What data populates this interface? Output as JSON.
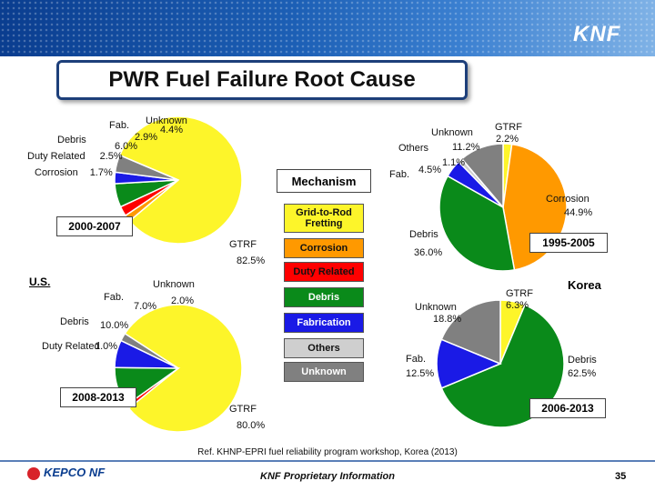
{
  "title": "PWR Fuel Failure Root Cause",
  "brand_logo_text": "KNF",
  "mechanism_label": "Mechanism",
  "countries": {
    "us": "U.S.",
    "korea": "Korea"
  },
  "legend": [
    {
      "label": "Grid-to-Rod Fretting",
      "color": "#fdf52a"
    },
    {
      "label": "Corrosion",
      "color": "#ff9900"
    },
    {
      "label": "Duty Related",
      "color": "#ff0000"
    },
    {
      "label": "Debris",
      "color": "#0a8a1a"
    },
    {
      "label": "Fabrication",
      "color": "#1a1ae6"
    },
    {
      "label": "Others",
      "color": "#cfcfcf"
    },
    {
      "label": "Unknown",
      "color": "#808080"
    }
  ],
  "chart_data": [
    {
      "type": "pie",
      "title": "2000-2007",
      "region": "U.S.",
      "slices": [
        {
          "label": "GTRF",
          "value": 82.5,
          "value_text": "82.5%"
        },
        {
          "label": "Corrosion",
          "value": 1.7,
          "value_text": "1.7%"
        },
        {
          "label": "Duty Related",
          "value": 2.5,
          "value_text": "2.5%"
        },
        {
          "label": "Debris",
          "value": 6.0,
          "value_text": "6.0%"
        },
        {
          "label": "Fab.",
          "value": 2.9,
          "value_text": "2.9%"
        },
        {
          "label": "Unknown",
          "value": 4.4,
          "value_text": "4.4%"
        }
      ]
    },
    {
      "type": "pie",
      "title": "2008-2013",
      "region": "U.S.",
      "slices": [
        {
          "label": "GTRF",
          "value": 80.0,
          "value_text": "80.0%"
        },
        {
          "label": "Duty Related",
          "value": 1.0,
          "value_text": "1.0%"
        },
        {
          "label": "Debris",
          "value": 10.0,
          "value_text": "10.0%"
        },
        {
          "label": "Fab.",
          "value": 7.0,
          "value_text": "7.0%"
        },
        {
          "label": "Unknown",
          "value": 2.0,
          "value_text": "2.0%"
        }
      ]
    },
    {
      "type": "pie",
      "title": "1995-2005",
      "region": "Korea",
      "slices": [
        {
          "label": "GTRF",
          "value": 2.2,
          "value_text": "2.2%"
        },
        {
          "label": "Corrosion",
          "value": 44.9,
          "value_text": "44.9%"
        },
        {
          "label": "Debris",
          "value": 36.0,
          "value_text": "36.0%"
        },
        {
          "label": "Fab.",
          "value": 4.5,
          "value_text": "4.5%"
        },
        {
          "label": "Others",
          "value": 1.1,
          "value_text": "1.1%"
        },
        {
          "label": "Unknown",
          "value": 11.2,
          "value_text": "11.2%"
        }
      ]
    },
    {
      "type": "pie",
      "title": "2006-2013",
      "region": "Korea",
      "slices": [
        {
          "label": "GTRF",
          "value": 6.3,
          "value_text": "6.3%"
        },
        {
          "label": "Debris",
          "value": 62.5,
          "value_text": "62.5%"
        },
        {
          "label": "Fab.",
          "value": 12.5,
          "value_text": "12.5%"
        },
        {
          "label": "Unknown",
          "value": 18.8,
          "value_text": "18.8%"
        }
      ]
    }
  ],
  "reference": "Ref. KHNP-EPRI fuel reliability program workshop, Korea (2013)",
  "footer_text": "KNF Proprietary Information",
  "footer_logo": "KEPCO NF",
  "page_number": "35"
}
